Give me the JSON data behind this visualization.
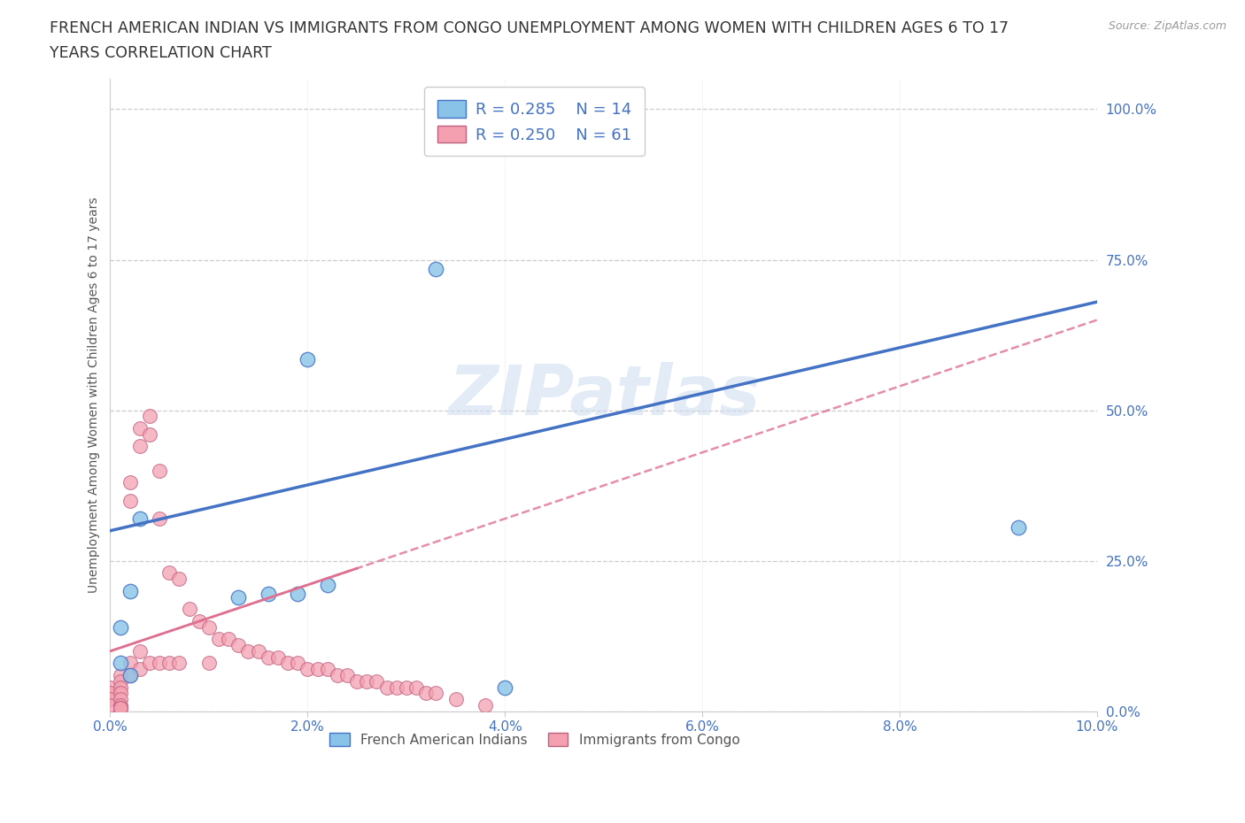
{
  "title_line1": "FRENCH AMERICAN INDIAN VS IMMIGRANTS FROM CONGO UNEMPLOYMENT AMONG WOMEN WITH CHILDREN AGES 6 TO 17",
  "title_line2": "YEARS CORRELATION CHART",
  "source": "Source: ZipAtlas.com",
  "ylabel": "Unemployment Among Women with Children Ages 6 to 17 years",
  "xlim": [
    0.0,
    0.1
  ],
  "ylim": [
    0.0,
    1.05
  ],
  "x_ticks": [
    0.0,
    0.02,
    0.04,
    0.06,
    0.08,
    0.1
  ],
  "x_tick_labels": [
    "0.0%",
    "2.0%",
    "4.0%",
    "6.0%",
    "8.0%",
    "10.0%"
  ],
  "y_ticks": [
    0.0,
    0.25,
    0.5,
    0.75,
    1.0
  ],
  "y_tick_labels": [
    "0.0%",
    "25.0%",
    "50.0%",
    "75.0%",
    "100.0%"
  ],
  "legend_R_blue": "R = 0.285",
  "legend_N_blue": "N = 14",
  "legend_R_pink": "R = 0.250",
  "legend_N_pink": "N = 61",
  "blue_color": "#89c4e8",
  "blue_edge_color": "#4472c4",
  "pink_color": "#f4a0b0",
  "pink_edge_color": "#c06080",
  "trend_blue_color": "#4472c4",
  "trend_pink_color": "#e07090",
  "watermark": "ZIPatlas",
  "blue_scatter_x": [
    0.04,
    0.033,
    0.02,
    0.003,
    0.002,
    0.001,
    0.001,
    0.002,
    0.019,
    0.022,
    0.016,
    0.013,
    0.092,
    0.04
  ],
  "blue_scatter_y": [
    0.955,
    0.735,
    0.585,
    0.32,
    0.2,
    0.14,
    0.08,
    0.06,
    0.195,
    0.21,
    0.195,
    0.19,
    0.305,
    0.04
  ],
  "pink_scatter_x": [
    0.0,
    0.0,
    0.0,
    0.0,
    0.001,
    0.001,
    0.001,
    0.001,
    0.001,
    0.001,
    0.001,
    0.001,
    0.001,
    0.001,
    0.002,
    0.002,
    0.002,
    0.002,
    0.003,
    0.003,
    0.003,
    0.003,
    0.004,
    0.004,
    0.004,
    0.005,
    0.005,
    0.005,
    0.006,
    0.006,
    0.007,
    0.007,
    0.008,
    0.009,
    0.01,
    0.01,
    0.011,
    0.012,
    0.013,
    0.014,
    0.015,
    0.016,
    0.017,
    0.018,
    0.019,
    0.02,
    0.021,
    0.022,
    0.023,
    0.024,
    0.025,
    0.026,
    0.027,
    0.028,
    0.029,
    0.03,
    0.031,
    0.032,
    0.033,
    0.035,
    0.038
  ],
  "pink_scatter_y": [
    0.04,
    0.03,
    0.02,
    0.01,
    0.06,
    0.05,
    0.04,
    0.03,
    0.02,
    0.01,
    0.005,
    0.005,
    0.005,
    0.005,
    0.38,
    0.35,
    0.08,
    0.06,
    0.47,
    0.44,
    0.1,
    0.07,
    0.49,
    0.46,
    0.08,
    0.4,
    0.32,
    0.08,
    0.23,
    0.08,
    0.22,
    0.08,
    0.17,
    0.15,
    0.14,
    0.08,
    0.12,
    0.12,
    0.11,
    0.1,
    0.1,
    0.09,
    0.09,
    0.08,
    0.08,
    0.07,
    0.07,
    0.07,
    0.06,
    0.06,
    0.05,
    0.05,
    0.05,
    0.04,
    0.04,
    0.04,
    0.04,
    0.03,
    0.03,
    0.02,
    0.01
  ],
  "trend_blue_x0": 0.0,
  "trend_blue_y0": 0.3,
  "trend_blue_x1": 0.1,
  "trend_blue_y1": 0.68,
  "trend_pink_x0": 0.0,
  "trend_pink_y0": 0.1,
  "trend_pink_x1": 0.1,
  "trend_pink_y1": 0.65,
  "grid_color": "#cccccc",
  "background_color": "#ffffff",
  "tick_color": "#4472c4",
  "title_fontsize": 12.5,
  "axis_label_fontsize": 10,
  "tick_fontsize": 11,
  "legend_fontsize": 13
}
